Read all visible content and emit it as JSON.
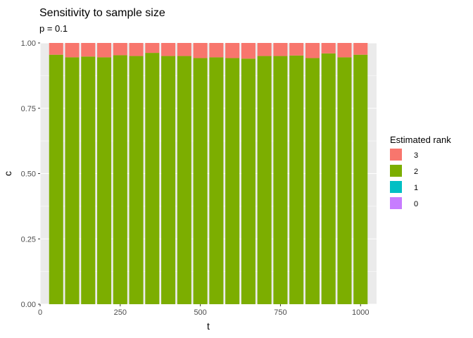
{
  "chart_data": {
    "type": "bar",
    "stacked": true,
    "title": "Sensitivity to sample size",
    "subtitle": "p = 0.1",
    "xlabel": "t",
    "ylabel": "c",
    "xlim": [
      0,
      1050
    ],
    "ylim": [
      0,
      1.0
    ],
    "x_ticks": [
      0,
      250,
      500,
      750,
      1000
    ],
    "y_ticks": [
      0.0,
      0.25,
      0.5,
      0.75,
      1.0
    ],
    "x_tick_labels": [
      "0",
      "250",
      "500",
      "750",
      "1000"
    ],
    "y_tick_labels": [
      "0.00",
      "0.25",
      "0.50",
      "0.75",
      "1.00"
    ],
    "x": [
      50,
      100,
      150,
      200,
      250,
      300,
      350,
      400,
      450,
      500,
      550,
      600,
      650,
      700,
      750,
      800,
      850,
      900,
      950,
      1000
    ],
    "bar_width": 44,
    "series": [
      {
        "name": "2",
        "color": "#7CAE00",
        "values": [
          0.955,
          0.945,
          0.948,
          0.945,
          0.953,
          0.95,
          0.962,
          0.95,
          0.95,
          0.942,
          0.945,
          0.942,
          0.94,
          0.95,
          0.95,
          0.952,
          0.942,
          0.96,
          0.945,
          0.955
        ]
      },
      {
        "name": "3",
        "color": "#F8766D",
        "values": [
          0.045,
          0.055,
          0.052,
          0.055,
          0.047,
          0.05,
          0.038,
          0.05,
          0.05,
          0.058,
          0.055,
          0.058,
          0.06,
          0.05,
          0.05,
          0.048,
          0.058,
          0.04,
          0.055,
          0.045
        ]
      }
    ],
    "legend": {
      "title": "Estimated rank",
      "position": "right",
      "entries": [
        {
          "label": "3",
          "color": "#F8766D"
        },
        {
          "label": "2",
          "color": "#7CAE00"
        },
        {
          "label": "1",
          "color": "#00BFC4"
        },
        {
          "label": "0",
          "color": "#C77CFF"
        }
      ]
    },
    "grid": true,
    "panel_background": "#EBEBEB",
    "grid_color": "#FFFFFF"
  }
}
